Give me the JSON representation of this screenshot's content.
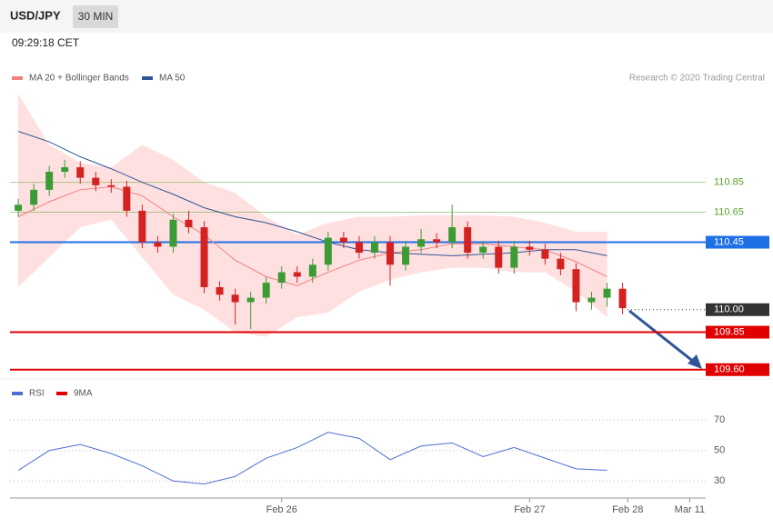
{
  "header": {
    "symbol": "USD/JPY",
    "interval": "30 MIN",
    "time": "09:29:18 CET",
    "credit": "Research © 2020 Trading Central"
  },
  "chart_data": [
    {
      "type": "candlestick",
      "legend": [
        "MA 20 + Bollinger Bands",
        "MA 50"
      ],
      "xlim": [
        -1.6,
        133.1
      ],
      "ylim": [
        109.55,
        111.49
      ],
      "candles": {
        "x": [
          0,
          3,
          6,
          9,
          12,
          15,
          18,
          21,
          24,
          27,
          30,
          33,
          36,
          39,
          42,
          45,
          48,
          51,
          54,
          57,
          60,
          63,
          66,
          69,
          72,
          75,
          78,
          81,
          84,
          87,
          90,
          93,
          96,
          99,
          102,
          105,
          108,
          111,
          114,
          117
        ],
        "open": [
          110.66,
          110.7,
          110.8,
          110.92,
          110.95,
          110.88,
          110.83,
          110.82,
          110.66,
          110.45,
          110.42,
          110.6,
          110.55,
          110.15,
          110.1,
          110.05,
          110.08,
          110.18,
          110.25,
          110.22,
          110.3,
          110.48,
          110.45,
          110.38,
          110.45,
          110.3,
          110.42,
          110.47,
          110.45,
          110.55,
          110.38,
          110.42,
          110.28,
          110.42,
          110.4,
          110.34,
          110.27,
          110.05,
          110.08,
          110.14
        ],
        "high": [
          110.74,
          110.84,
          110.96,
          111.0,
          110.99,
          110.92,
          110.87,
          110.86,
          110.7,
          110.49,
          110.64,
          110.66,
          110.59,
          110.19,
          110.14,
          110.12,
          110.22,
          110.29,
          110.29,
          110.34,
          110.52,
          110.52,
          110.49,
          110.49,
          110.49,
          110.46,
          110.54,
          110.51,
          110.7,
          110.59,
          110.46,
          110.46,
          110.46,
          110.46,
          110.44,
          110.38,
          110.31,
          110.12,
          110.18,
          110.18
        ],
        "low": [
          110.62,
          110.66,
          110.76,
          110.88,
          110.84,
          110.79,
          110.78,
          110.62,
          110.41,
          110.38,
          110.38,
          110.51,
          110.11,
          110.06,
          109.9,
          109.87,
          110.04,
          110.14,
          110.18,
          110.18,
          110.26,
          110.41,
          110.34,
          110.34,
          110.16,
          110.26,
          110.38,
          110.41,
          110.41,
          110.34,
          110.34,
          110.24,
          110.24,
          110.36,
          110.3,
          110.23,
          109.99,
          110.0,
          110.02,
          109.97
        ],
        "close": [
          110.7,
          110.8,
          110.92,
          110.95,
          110.88,
          110.83,
          110.82,
          110.66,
          110.45,
          110.42,
          110.6,
          110.55,
          110.15,
          110.1,
          110.05,
          110.08,
          110.18,
          110.25,
          110.22,
          110.3,
          110.48,
          110.45,
          110.38,
          110.45,
          110.3,
          110.42,
          110.47,
          110.45,
          110.55,
          110.38,
          110.42,
          110.28,
          110.42,
          110.4,
          110.34,
          110.27,
          110.05,
          110.08,
          110.14,
          110.01
        ],
        "up_color": "#3d9b35",
        "down_color": "#d42121"
      },
      "lines": {
        "x": [
          0,
          6,
          12,
          18,
          24,
          30,
          36,
          42,
          48,
          54,
          60,
          66,
          72,
          78,
          84,
          90,
          96,
          102,
          108,
          114
        ],
        "ma20": [
          110.62,
          110.72,
          110.8,
          110.82,
          110.76,
          110.62,
          110.5,
          110.33,
          110.22,
          110.16,
          110.25,
          110.33,
          110.38,
          110.4,
          110.44,
          110.44,
          110.42,
          110.4,
          110.32,
          110.22
        ],
        "upper": [
          111.44,
          111.1,
          110.98,
          110.95,
          111.1,
          111.0,
          110.85,
          110.78,
          110.62,
          110.5,
          110.58,
          110.62,
          110.62,
          110.63,
          110.63,
          110.63,
          110.62,
          110.58,
          110.52,
          110.52
        ],
        "lower": [
          110.15,
          110.35,
          110.55,
          110.6,
          110.35,
          110.1,
          110.0,
          109.85,
          109.82,
          109.95,
          109.98,
          110.12,
          110.2,
          110.25,
          110.28,
          110.28,
          110.25,
          110.25,
          110.12,
          109.95
        ],
        "ma50": [
          111.19,
          111.12,
          111.02,
          110.94,
          110.85,
          110.77,
          110.68,
          110.62,
          110.58,
          110.52,
          110.45,
          110.4,
          110.38,
          110.37,
          110.36,
          110.37,
          110.38,
          110.4,
          110.4,
          110.36
        ],
        "ma20_color": "#f08080",
        "band_color": "#ffe0e0",
        "ma50_color": "#2f5597"
      },
      "levels": [
        {
          "value": 110.85,
          "color": "#5aa02c",
          "style": "thin"
        },
        {
          "value": 110.65,
          "color": "#5aa02c",
          "style": "thin"
        },
        {
          "value": 110.45,
          "color": "#1f6fe5",
          "style": "box"
        },
        {
          "value": 110,
          "label": "110.00",
          "color": "#333333",
          "style": "dotted"
        },
        {
          "value": 109.85,
          "color": "#e00000",
          "style": "box"
        },
        {
          "value": 109.6,
          "label": "109.60",
          "color": "#e00000",
          "style": "box"
        }
      ]
    },
    {
      "type": "line",
      "ylim": [
        23.6,
        80.3
      ],
      "yticks": [
        30,
        50,
        70
      ],
      "xlim": [
        -1.6,
        133.1
      ],
      "xticks": [
        {
          "value": 51,
          "label": "Feb 26"
        },
        {
          "value": 99,
          "label": "Feb 27"
        },
        {
          "value": 118,
          "label": "Feb 28"
        },
        {
          "value": 130,
          "label": "Mar 11"
        }
      ],
      "x": [
        0,
        6,
        12,
        18,
        24,
        30,
        36,
        42,
        48,
        54,
        60,
        66,
        72,
        78,
        84,
        90,
        96,
        102,
        108,
        114
      ],
      "series": [
        {
          "name": "RSI",
          "color": "#4a6fd0",
          "values": [
            37,
            50,
            54,
            48,
            40,
            30,
            28,
            33,
            45,
            52,
            62,
            58,
            44,
            53,
            55,
            46,
            52,
            45,
            38,
            37
          ]
        },
        {
          "name": "9MA",
          "color": "#e00000",
          "values": [
            null,
            null,
            null,
            null,
            null,
            null,
            null,
            null,
            null,
            null,
            null,
            null,
            null,
            null,
            null,
            null,
            null,
            null,
            null,
            null
          ]
        }
      ]
    }
  ]
}
